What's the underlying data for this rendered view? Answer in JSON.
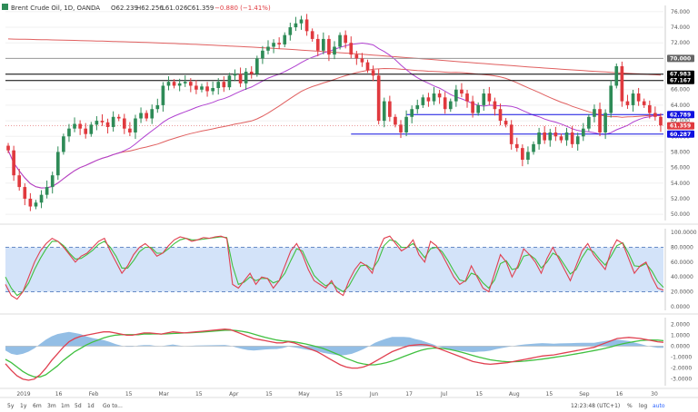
{
  "header": {
    "symbol_label": "Brent Crude Oil, 1D, OANDA",
    "open": "O62.239",
    "high": "H62.256",
    "low": "L61.026",
    "close": "C61.359",
    "change": "−0.880 (−1.41%)"
  },
  "toolbar": {
    "ranges": [
      "5y",
      "1y",
      "6m",
      "3m",
      "1m",
      "5d",
      "1d"
    ],
    "goto": "Go to...",
    "clock": "12:23:48 (UTC+1)",
    "pct": "%",
    "log": "log",
    "auto": "auto"
  },
  "colors": {
    "up": "#2e8b57",
    "down": "#e0393e",
    "sma_red": "#e06060",
    "sma_purple": "#b040d0",
    "blue_line": "#1010e0",
    "black_line": "#000000",
    "band_fill": "#c8dcf8",
    "stoch_k": "#e04050",
    "stoch_d": "#40c040",
    "macd_hist": "#6fa8dc"
  },
  "chart_data": [
    {
      "type": "candlestick",
      "series_name": "Brent Crude Oil, 1D, OANDA",
      "x_labels": [
        "2019",
        "16",
        "Feb",
        "15",
        "Mar",
        "15",
        "Apr",
        "15",
        "May",
        "15",
        "Jun",
        "17",
        "Jul",
        "15",
        "Aug",
        "15",
        "Sep",
        "16",
        "30"
      ],
      "y_ticks": [
        50,
        52,
        54,
        56,
        58,
        60,
        62,
        64,
        66,
        68,
        70,
        72,
        74,
        76
      ],
      "ylim": [
        49.2,
        76.8
      ],
      "close_path": [
        58.2,
        55.0,
        53.5,
        52.0,
        51.0,
        51.5,
        52.5,
        53.5,
        55.0,
        58.0,
        60.0,
        61.0,
        61.6,
        61.0,
        60.3,
        61.5,
        62.0,
        61.8,
        61.2,
        62.5,
        62.3,
        61.0,
        60.5,
        62.3,
        63.0,
        62.3,
        63.5,
        64.0,
        66.5,
        67.0,
        66.5,
        66.8,
        67.0,
        66.5,
        66.0,
        66.4,
        65.8,
        66.2,
        67.0,
        66.3,
        67.8,
        68.0,
        66.8,
        68.3,
        68.0,
        70.0,
        71.0,
        71.5,
        72.0,
        71.8,
        73.0,
        74.0,
        74.5,
        75.0,
        73.5,
        72.5,
        71.0,
        72.5,
        70.5,
        71.5,
        73.0,
        72.0,
        70.5,
        70.0,
        69.5,
        68.5,
        67.8,
        62.0,
        64.5,
        62.5,
        61.5,
        60.5,
        62.5,
        63.5,
        64.0,
        65.0,
        64.5,
        65.5,
        65.0,
        63.5,
        64.5,
        66.0,
        65.5,
        64.5,
        63.0,
        64.0,
        65.5,
        64.5,
        63.5,
        62.0,
        61.5,
        59.0,
        58.5,
        57.0,
        58.0,
        59.0,
        60.5,
        59.5,
        60.5,
        60.0,
        59.5,
        60.5,
        59.0,
        60.0,
        61.0,
        62.5,
        63.5,
        60.5,
        63.0,
        66.5,
        69.0,
        64.5,
        64.0,
        65.5,
        64.5,
        64.0,
        63.0,
        62.5,
        61.4
      ],
      "reference_labels": [
        {
          "value": 76.0,
          "text": "76.000",
          "kind": "tick"
        },
        {
          "value": 70.0,
          "text": "70.000",
          "kind": "level_gray"
        },
        {
          "value": 67.983,
          "text": "67.983",
          "kind": "level_black"
        },
        {
          "value": 67.167,
          "text": "67.167",
          "kind": "level_black"
        },
        {
          "value": 62.789,
          "text": "62.789",
          "kind": "level_blue"
        },
        {
          "value": 61.359,
          "text": "61.359",
          "kind": "price"
        },
        {
          "value": 60.287,
          "text": "60.287",
          "kind": "level_blue"
        }
      ],
      "horizontal_levels": [
        {
          "value": 67.983,
          "color": "black"
        },
        {
          "value": 67.167,
          "color": "black"
        },
        {
          "value": 70.0,
          "color": "gray"
        },
        {
          "value": 62.789,
          "color": "blue",
          "from_index": 72
        },
        {
          "value": 60.287,
          "color": "blue",
          "from_index": 62
        }
      ]
    },
    {
      "type": "line",
      "series_name": "Stochastic",
      "y_ticks": [
        "100.0000",
        "80.0000",
        "60.0000",
        "40.0000",
        "20.0000",
        "0.0000"
      ],
      "ylim": [
        -5,
        105
      ],
      "band": [
        20,
        80
      ],
      "k": [
        30,
        15,
        10,
        20,
        40,
        60,
        75,
        85,
        92,
        88,
        80,
        70,
        60,
        68,
        72,
        80,
        88,
        92,
        75,
        60,
        45,
        55,
        70,
        80,
        85,
        78,
        68,
        72,
        82,
        90,
        94,
        92,
        88,
        90,
        93,
        92,
        94,
        95,
        92,
        30,
        25,
        35,
        45,
        30,
        40,
        38,
        25,
        35,
        55,
        75,
        85,
        70,
        50,
        35,
        30,
        25,
        35,
        20,
        15,
        35,
        50,
        60,
        55,
        45,
        75,
        92,
        95,
        85,
        75,
        80,
        90,
        70,
        60,
        88,
        82,
        70,
        55,
        40,
        30,
        35,
        55,
        40,
        25,
        20,
        45,
        70,
        60,
        40,
        55,
        78,
        70,
        60,
        45,
        65,
        80,
        65,
        50,
        35,
        55,
        75,
        85,
        70,
        60,
        50,
        75,
        90,
        85,
        65,
        45,
        55,
        60,
        40,
        25,
        22
      ],
      "d": [
        40,
        25,
        15,
        20,
        32,
        50,
        65,
        78,
        88,
        88,
        82,
        72,
        64,
        65,
        70,
        76,
        84,
        88,
        80,
        68,
        52,
        52,
        62,
        74,
        80,
        80,
        72,
        72,
        78,
        85,
        90,
        92,
        90,
        90,
        91,
        92,
        93,
        94,
        93,
        55,
        30,
        33,
        40,
        35,
        38,
        38,
        32,
        35,
        45,
        62,
        78,
        75,
        58,
        42,
        34,
        28,
        32,
        25,
        20,
        28,
        42,
        55,
        56,
        50,
        62,
        82,
        90,
        88,
        80,
        80,
        85,
        76,
        66,
        78,
        80,
        74,
        62,
        48,
        36,
        34,
        45,
        42,
        32,
        25,
        36,
        58,
        62,
        50,
        52,
        68,
        70,
        64,
        52,
        60,
        72,
        68,
        56,
        44,
        50,
        66,
        78,
        74,
        64,
        56,
        68,
        82,
        86,
        72,
        55,
        54,
        58,
        48,
        34,
        26
      ]
    },
    {
      "type": "line",
      "series_name": "MACD",
      "y_ticks": [
        "2.0000",
        "1.0000",
        "0.0000",
        "-1.0000",
        "-2.0000",
        "-3.0000"
      ],
      "ylim": [
        -3.6,
        2.6
      ],
      "macd": [
        -1.6,
        -2.2,
        -2.7,
        -3.0,
        -3.1,
        -3.0,
        -2.6,
        -2.0,
        -1.3,
        -0.7,
        -0.1,
        0.4,
        0.7,
        0.9,
        1.0,
        1.1,
        1.2,
        1.3,
        1.3,
        1.2,
        1.1,
        1.0,
        1.0,
        1.1,
        1.2,
        1.2,
        1.15,
        1.1,
        1.2,
        1.3,
        1.25,
        1.2,
        1.25,
        1.3,
        1.35,
        1.4,
        1.45,
        1.5,
        1.55,
        1.5,
        1.3,
        1.1,
        0.9,
        0.7,
        0.6,
        0.5,
        0.4,
        0.3,
        0.3,
        0.4,
        0.3,
        0.1,
        -0.1,
        -0.3,
        -0.5,
        -0.8,
        -1.1,
        -1.4,
        -1.7,
        -1.9,
        -2.0,
        -2.0,
        -1.9,
        -1.7,
        -1.4,
        -1.1,
        -0.8,
        -0.5,
        -0.3,
        -0.1,
        0.05,
        0.1,
        0.15,
        0.1,
        0.0,
        -0.2,
        -0.4,
        -0.6,
        -0.8,
        -1.0,
        -1.2,
        -1.4,
        -1.5,
        -1.6,
        -1.65,
        -1.6,
        -1.55,
        -1.5,
        -1.4,
        -1.3,
        -1.2,
        -1.1,
        -1.0,
        -0.9,
        -0.85,
        -0.8,
        -0.7,
        -0.6,
        -0.5,
        -0.4,
        -0.3,
        -0.2,
        -0.1,
        0.1,
        0.3,
        0.5,
        0.7,
        0.75,
        0.8,
        0.75,
        0.7,
        0.6,
        0.5,
        0.4,
        0.35
      ],
      "signal": [
        -1.2,
        -1.5,
        -1.9,
        -2.3,
        -2.6,
        -2.8,
        -2.8,
        -2.6,
        -2.2,
        -1.8,
        -1.3,
        -0.9,
        -0.5,
        -0.2,
        0.1,
        0.35,
        0.55,
        0.75,
        0.9,
        1.0,
        1.05,
        1.05,
        1.05,
        1.05,
        1.1,
        1.1,
        1.12,
        1.1,
        1.12,
        1.15,
        1.18,
        1.2,
        1.22,
        1.25,
        1.28,
        1.32,
        1.36,
        1.4,
        1.44,
        1.46,
        1.42,
        1.35,
        1.25,
        1.1,
        0.95,
        0.8,
        0.68,
        0.56,
        0.48,
        0.44,
        0.4,
        0.3,
        0.2,
        0.08,
        -0.05,
        -0.2,
        -0.4,
        -0.62,
        -0.85,
        -1.1,
        -1.3,
        -1.5,
        -1.62,
        -1.7,
        -1.7,
        -1.62,
        -1.5,
        -1.35,
        -1.15,
        -0.95,
        -0.75,
        -0.55,
        -0.38,
        -0.25,
        -0.18,
        -0.17,
        -0.22,
        -0.3,
        -0.42,
        -0.55,
        -0.7,
        -0.85,
        -1.0,
        -1.12,
        -1.24,
        -1.32,
        -1.38,
        -1.42,
        -1.42,
        -1.4,
        -1.36,
        -1.3,
        -1.24,
        -1.18,
        -1.1,
        -1.02,
        -0.95,
        -0.87,
        -0.78,
        -0.69,
        -0.6,
        -0.5,
        -0.4,
        -0.3,
        -0.18,
        -0.05,
        0.1,
        0.22,
        0.33,
        0.42,
        0.5,
        0.55,
        0.57,
        0.55,
        0.5
      ]
    }
  ]
}
